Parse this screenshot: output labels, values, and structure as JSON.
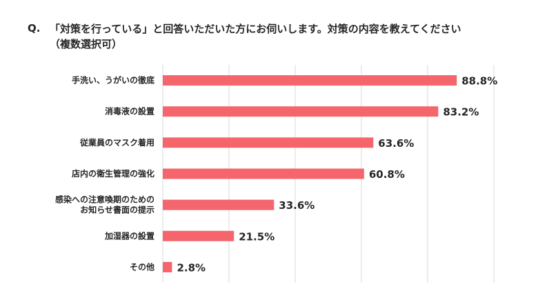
{
  "question": {
    "prefix": "Q.",
    "line1": "「対策を行っている」と回答いただいた方にお伺いします。対策の内容を教えてください",
    "line2": "（複数選択可）"
  },
  "colors": {
    "bar": "#f4666c",
    "grid": "#d9d9d9"
  },
  "chart_data": {
    "type": "bar",
    "orientation": "horizontal",
    "categories": [
      "手洗い、うがいの徹底",
      "消毒液の設置",
      "従業員のマスク着用",
      "店内の衛生管理の強化",
      "感染への注意喚期のためのお知らせ書面の提示",
      "加湿器の設置",
      "その他"
    ],
    "category_lines": [
      [
        "手洗い、うがいの徹底"
      ],
      [
        "消毒液の設置"
      ],
      [
        "従業員のマスク着用"
      ],
      [
        "店内の衛生管理の強化"
      ],
      [
        "感染への注意喚期のための",
        "お知らせ書面の提示"
      ],
      [
        "加湿器の設置"
      ],
      [
        "その他"
      ]
    ],
    "values": [
      88.8,
      83.2,
      63.6,
      60.8,
      33.6,
      21.5,
      2.8
    ],
    "value_labels": [
      "88.8%",
      "83.2%",
      "63.6%",
      "60.8%",
      "33.6%",
      "21.5%",
      "2.8%"
    ],
    "xlim": [
      0,
      100
    ],
    "gridlines": [
      0,
      20,
      40,
      60,
      80,
      100
    ],
    "grid": true,
    "legend": "none"
  }
}
